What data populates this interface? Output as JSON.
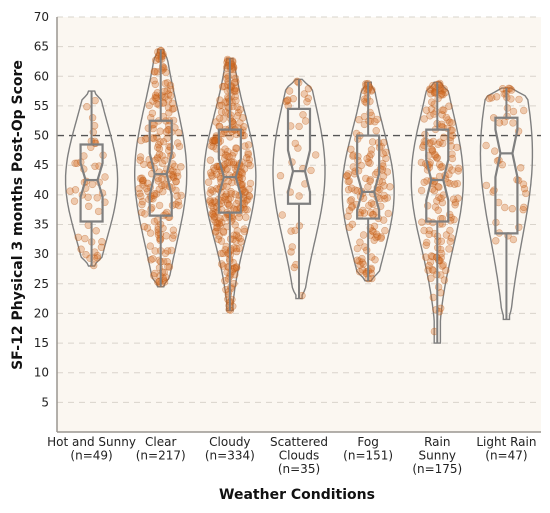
{
  "chart_data": {
    "type": "violin",
    "title": "",
    "xlabel": "Weather Conditions",
    "ylabel": "SF-12 Physical 3 months Post-Op Score",
    "ylim": [
      0,
      70
    ],
    "yticks": [
      5,
      10,
      15,
      20,
      25,
      30,
      35,
      40,
      45,
      50,
      55,
      60,
      65,
      70
    ],
    "reference_line": 50,
    "grid": "horizontal dashed",
    "colors": {
      "background": "#fbf7f1",
      "points": "#d2691e",
      "outline": "#7f7f7f",
      "reference_line": "#555555",
      "grid": "#d9d4cc"
    },
    "categories": [
      {
        "label": [
          "Hot and Sunny",
          "(n=49)"
        ],
        "n": 49,
        "min": 28,
        "q1": 35.5,
        "median": 42.5,
        "q3": 48.5,
        "max": 57.5
      },
      {
        "label": [
          "Clear",
          "(n=217)"
        ],
        "n": 217,
        "min": 24.5,
        "q1": 36.5,
        "median": 43.5,
        "q3": 52.5,
        "max": 64.5
      },
      {
        "label": [
          "Cloudy",
          "(n=334)"
        ],
        "n": 334,
        "min": 20.5,
        "q1": 37,
        "median": 43,
        "q3": 51,
        "max": 63
      },
      {
        "label": [
          "Scattered",
          "Clouds",
          "(n=35)"
        ],
        "n": 35,
        "min": 22.5,
        "q1": 38.5,
        "median": 44,
        "q3": 54.5,
        "max": 59.5
      },
      {
        "label": [
          "Fog",
          "(n=151)"
        ],
        "n": 151,
        "min": 25.5,
        "q1": 36,
        "median": 40.5,
        "q3": 50,
        "max": 59
      },
      {
        "label": [
          "Rain",
          "Sunny",
          "(n=175)"
        ],
        "n": 175,
        "min": 15,
        "q1": 35.5,
        "median": 42.5,
        "q3": 51,
        "max": 59
      },
      {
        "label": [
          "Light Rain",
          "(n=47)"
        ],
        "n": 47,
        "min": 19,
        "q1": 33.5,
        "median": 47,
        "q3": 53,
        "max": 58
      }
    ]
  }
}
